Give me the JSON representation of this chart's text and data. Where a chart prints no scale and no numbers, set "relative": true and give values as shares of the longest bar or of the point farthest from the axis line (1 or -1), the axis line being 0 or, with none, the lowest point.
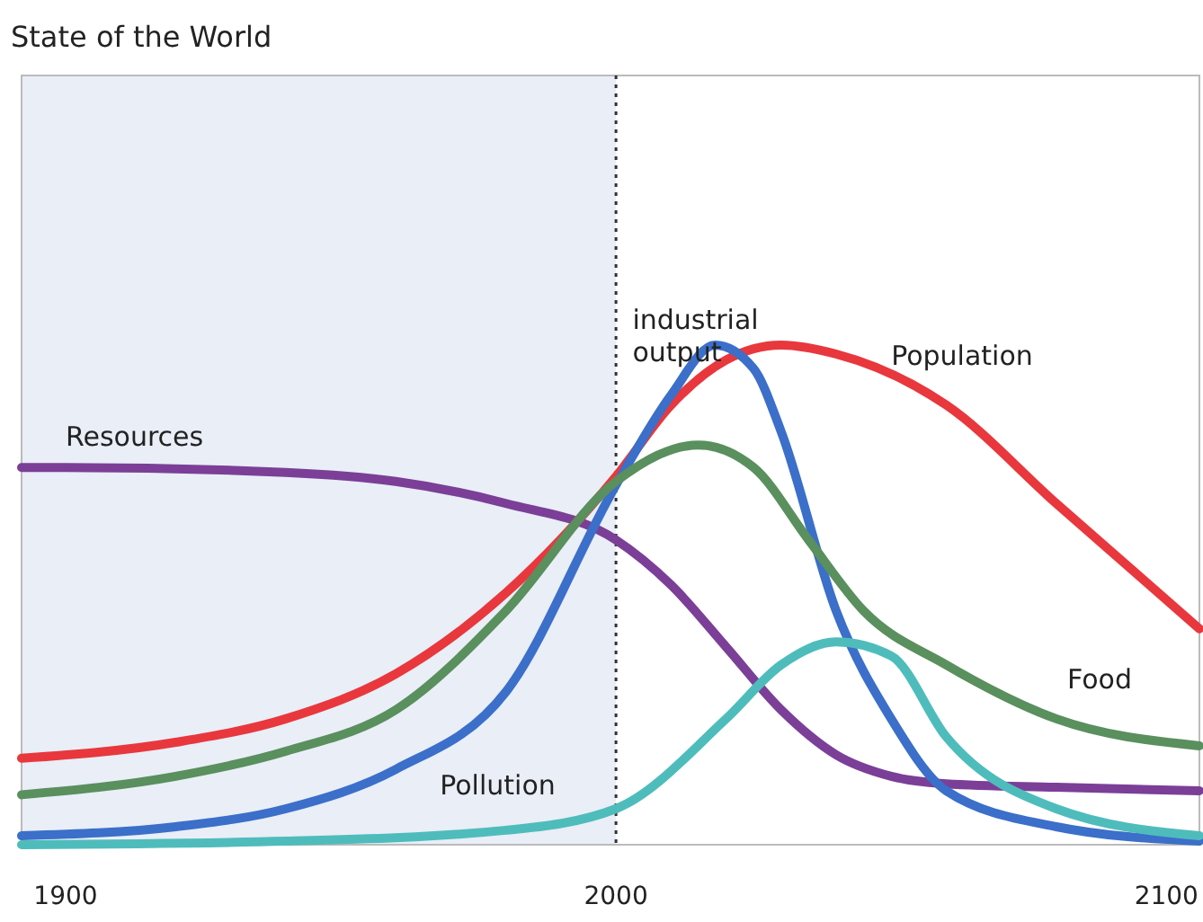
{
  "chart_data": {
    "type": "line",
    "title": "State of the World",
    "relative": true,
    "xlim": [
      1892,
      2106
    ],
    "xticks": [
      1900,
      2000,
      2100
    ],
    "grid": false,
    "marker": "none",
    "line_style": "solid",
    "ref_lines": [
      {
        "axis": "x",
        "value": 2000,
        "line_style": "dotted",
        "color": "#333333"
      }
    ],
    "bands": [
      {
        "axis": "x",
        "from": 1892,
        "to": 2000,
        "color": "#e9eef7"
      }
    ],
    "series": [
      {
        "name": "Resources",
        "color": "#7b3f98",
        "x": [
          1892,
          1900,
          1940,
          1960,
          1980,
          2000,
          2010,
          2020,
          2030,
          2040,
          2050,
          2060,
          2080,
          2106
        ],
        "values": [
          0.755,
          0.755,
          0.745,
          0.727,
          0.683,
          0.61,
          0.52,
          0.396,
          0.27,
          0.18,
          0.137,
          0.122,
          0.115,
          0.108
        ]
      },
      {
        "name": "Population",
        "color": "#e8383d",
        "x": [
          1892,
          1920,
          1940,
          1960,
          1980,
          2000,
          2010,
          2020,
          2030,
          2040,
          2060,
          2080,
          2106
        ],
        "values": [
          0.173,
          0.205,
          0.252,
          0.342,
          0.504,
          0.737,
          0.88,
          0.97,
          1.0,
          0.982,
          0.88,
          0.683,
          0.432
        ]
      },
      {
        "name": "industrial output",
        "color": "#3b6fc9",
        "x": [
          1892,
          1920,
          1940,
          1960,
          1980,
          2000,
          2010,
          2018,
          2025,
          2030,
          2040,
          2050,
          2060,
          2080,
          2106
        ],
        "values": [
          0.018,
          0.036,
          0.072,
          0.151,
          0.306,
          0.72,
          0.9,
          1.0,
          0.953,
          0.827,
          0.468,
          0.252,
          0.108,
          0.036,
          0.007
        ]
      },
      {
        "name": "Food",
        "color": "#5a8f5e",
        "x": [
          1892,
          1920,
          1940,
          1960,
          1980,
          2000,
          2015,
          2025,
          2035,
          2045,
          2060,
          2080,
          2106
        ],
        "values": [
          0.1,
          0.137,
          0.187,
          0.27,
          0.468,
          0.727,
          0.8,
          0.755,
          0.61,
          0.468,
          0.36,
          0.252,
          0.198
        ]
      },
      {
        "name": "Pollution",
        "color": "#4fbcbc",
        "x": [
          1892,
          1940,
          1980,
          2000,
          2020,
          2030,
          2040,
          2050,
          2060,
          2080,
          2106
        ],
        "values": [
          0,
          0.007,
          0.029,
          0.072,
          0.252,
          0.36,
          0.406,
          0.378,
          0.216,
          0.072,
          0.018
        ]
      }
    ]
  }
}
